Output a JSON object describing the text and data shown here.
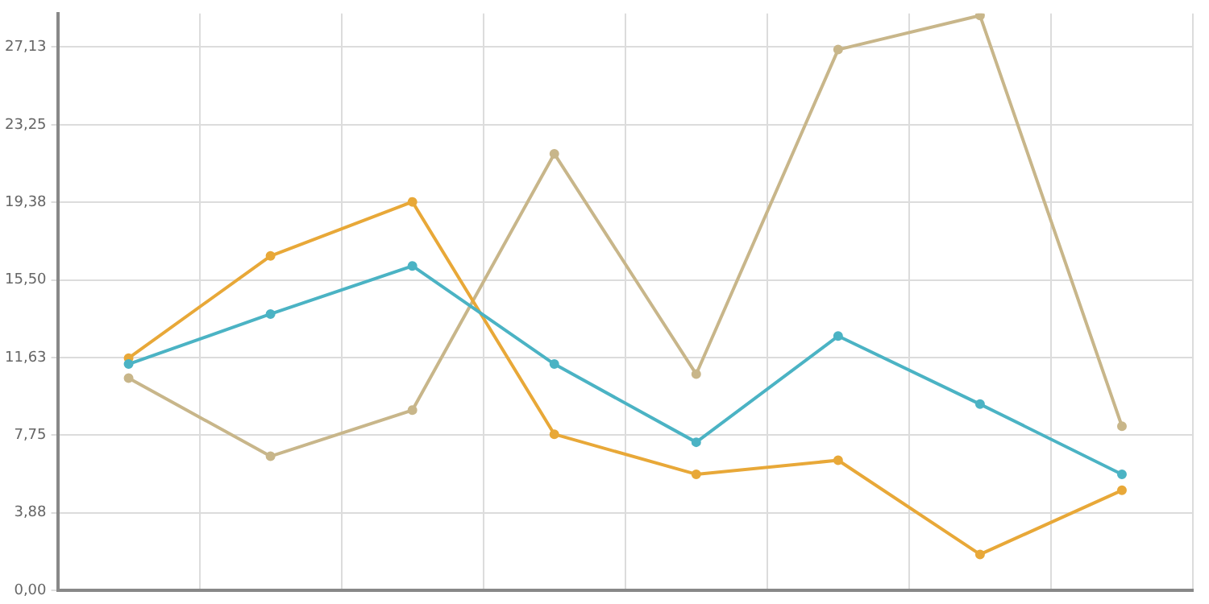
{
  "chart_data": {
    "type": "line",
    "categories": [
      null,
      null,
      null,
      null,
      null,
      null,
      null,
      null
    ],
    "series": [
      {
        "color": "#4bb3c4",
        "values": [
          11.3,
          13.8,
          16.2,
          11.3,
          7.4,
          12.7,
          9.3,
          5.8
        ]
      },
      {
        "color": "#e8a838",
        "values": [
          11.6,
          16.7,
          19.4,
          7.8,
          5.8,
          6.5,
          1.8,
          5.0
        ]
      },
      {
        "color": "#c8b68a",
        "values": [
          10.6,
          6.7,
          9.0,
          21.8,
          10.8,
          27.0,
          28.7,
          8.2
        ]
      }
    ],
    "ylim": [
      0,
      28.8
    ],
    "yticks": [
      {
        "value": 0,
        "label": "0,00"
      },
      {
        "value": 3.875,
        "label": "3,88"
      },
      {
        "value": 7.75,
        "label": "7,75"
      },
      {
        "value": 11.625,
        "label": "11,63"
      },
      {
        "value": 15.5,
        "label": "15,50"
      },
      {
        "value": 19.375,
        "label": "19,38"
      },
      {
        "value": 23.25,
        "label": "23,25"
      },
      {
        "value": 27.125,
        "label": "27,13"
      }
    ],
    "grid": true,
    "legend": false,
    "marker": "circle",
    "line_style": "solid",
    "tick_labels": "y"
  }
}
